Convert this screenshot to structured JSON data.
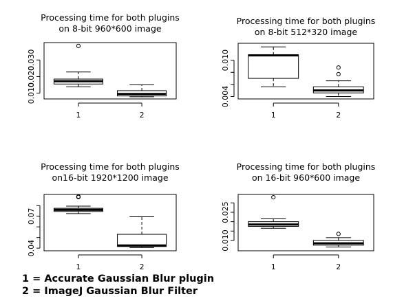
{
  "chart_data": [
    {
      "type": "boxplot",
      "title": [
        "Processing time for both plugins",
        "on 8-bit 960*600 image"
      ],
      "categories": [
        "1",
        "2"
      ],
      "ylim": [
        0.0065,
        0.0405
      ],
      "yticks": [
        0.01,
        0.02,
        0.03
      ],
      "ytick_labels": [
        "0.010",
        "0.020",
        "0.030"
      ],
      "boxes": [
        {
          "min": 0.0138,
          "q1": 0.0155,
          "median": 0.0172,
          "q3": 0.0185,
          "max": 0.0228,
          "outliers": [
            0.0385
          ]
        },
        {
          "min": 0.0078,
          "q1": 0.0083,
          "median": 0.0095,
          "q3": 0.0115,
          "max": 0.015,
          "outliers": []
        }
      ]
    },
    {
      "type": "boxplot",
      "title": [
        "Processing time for both plugins",
        "on 8-bit 512*320 image"
      ],
      "categories": [
        "1",
        "2"
      ],
      "ylim": [
        0.0036,
        0.0128
      ],
      "yticks": [
        0.004,
        0.006,
        0.008,
        0.01
      ],
      "ytick_labels": [
        "0.004",
        "",
        "",
        "0.010"
      ],
      "boxes": [
        {
          "min": 0.0056,
          "q1": 0.007,
          "median": 0.0108,
          "q3": 0.0109,
          "max": 0.0122,
          "outliers": []
        },
        {
          "min": 0.004,
          "q1": 0.0046,
          "median": 0.005,
          "q3": 0.0056,
          "max": 0.0066,
          "outliers": [
            0.0077,
            0.0088
          ]
        }
      ]
    },
    {
      "type": "boxplot",
      "title": [
        "Processing time for both plugins",
        "on16-bit 1920*1200 image"
      ],
      "categories": [
        "1",
        "2"
      ],
      "ylim": [
        0.0375,
        0.0905
      ],
      "yticks": [
        0.04,
        0.05,
        0.06,
        0.07,
        0.08
      ],
      "ytick_labels": [
        "0.04",
        "",
        "",
        "0.07",
        ""
      ],
      "boxes": [
        {
          "min": 0.0725,
          "q1": 0.0745,
          "median": 0.076,
          "q3": 0.0775,
          "max": 0.0795,
          "outliers": [
            0.088,
            0.0885
          ]
        },
        {
          "min": 0.0405,
          "q1": 0.0415,
          "median": 0.0425,
          "q3": 0.053,
          "max": 0.0695,
          "outliers": []
        }
      ]
    },
    {
      "type": "boxplot",
      "title": [
        "Processing time for both plugins",
        "on 16-bit 960*600 image"
      ],
      "categories": [
        "1",
        "2"
      ],
      "ylim": [
        0.0045,
        0.0345
      ],
      "yticks": [
        0.01,
        0.015,
        0.02,
        0.025,
        0.03
      ],
      "ytick_labels": [
        "0.010",
        "",
        "",
        "0.025",
        ""
      ],
      "boxes": [
        {
          "min": 0.0165,
          "q1": 0.0175,
          "median": 0.0185,
          "q3": 0.02,
          "max": 0.0215,
          "outliers": [
            0.033
          ]
        },
        {
          "min": 0.0065,
          "q1": 0.0075,
          "median": 0.0085,
          "q3": 0.01,
          "max": 0.0115,
          "outliers": [
            0.0135
          ]
        }
      ]
    }
  ],
  "legend": {
    "line1": "1 = Accurate Gaussian Blur plugin",
    "line2": "2 = ImageJ Gaussian Blur Filter"
  }
}
